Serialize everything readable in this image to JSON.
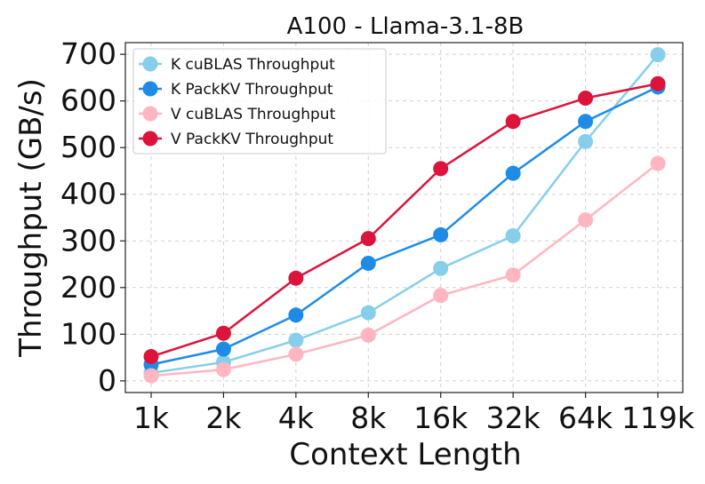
{
  "chart_data": {
    "type": "line",
    "title": "A100 - Llama-3.1-8B",
    "xlabel": "Context Length",
    "ylabel": "Throughput (GB/s)",
    "categories": [
      "1k",
      "2k",
      "4k",
      "8k",
      "16k",
      "32k",
      "64k",
      "119k"
    ],
    "yticks": [
      0,
      100,
      200,
      300,
      400,
      500,
      600,
      700
    ],
    "ylim": [
      -25,
      725
    ],
    "grid": true,
    "legend_position": "top-left",
    "series": [
      {
        "name": "K cuBLAS Throughput",
        "color": "#87ceeb",
        "values": [
          17,
          40,
          87,
          146,
          241,
          311,
          513,
          699
        ]
      },
      {
        "name": "K PackKV Throughput",
        "color": "#1e8ce6",
        "values": [
          35,
          68,
          141,
          252,
          313,
          445,
          556,
          630
        ]
      },
      {
        "name": "V cuBLAS Throughput",
        "color": "#ffb6c1",
        "values": [
          11,
          24,
          57,
          98,
          183,
          227,
          345,
          466
        ]
      },
      {
        "name": "V PackKV Throughput",
        "color": "#dc143c",
        "values": [
          52,
          102,
          220,
          305,
          455,
          556,
          606,
          637
        ]
      }
    ]
  }
}
